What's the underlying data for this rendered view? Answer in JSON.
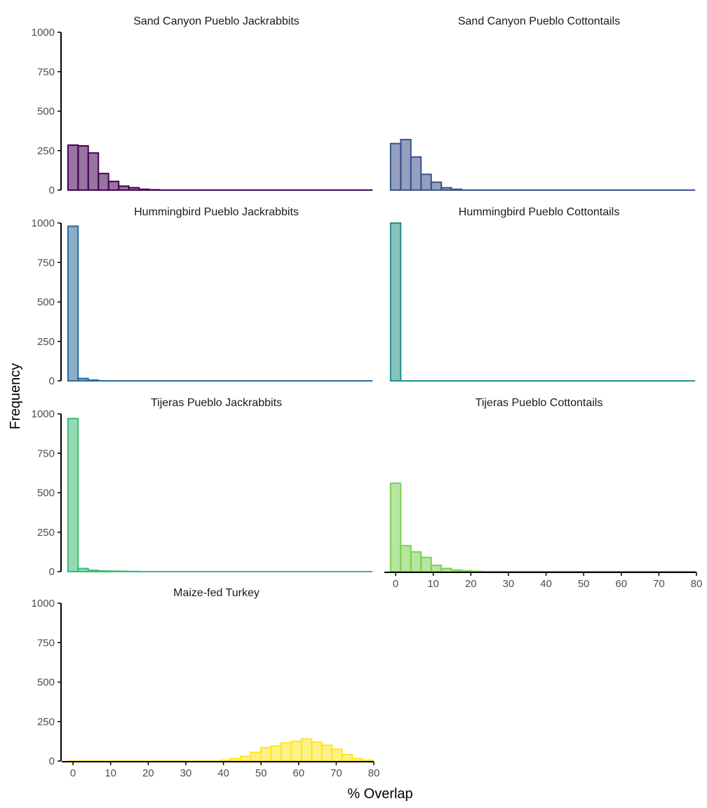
{
  "chart_data": {
    "type": "bar",
    "subtype": "faceted-histogram",
    "xlabel": "% Overlap",
    "ylabel": "Frequency",
    "xlim": [
      -3,
      80
    ],
    "ylim": [
      0,
      1000
    ],
    "x_ticks": [
      0,
      10,
      20,
      30,
      40,
      50,
      60,
      70,
      80
    ],
    "x_tick_labels": [
      "0",
      "10",
      "20",
      "30",
      "40",
      "50",
      "60",
      "70",
      "80"
    ],
    "y_ticks": [
      0,
      250,
      500,
      750,
      1000
    ],
    "y_tick_labels": [
      "0",
      "250",
      "500",
      "750",
      "1000"
    ],
    "bin_width": 2.7,
    "bin_start": -1.35,
    "grid": false,
    "legend": "none",
    "panels": [
      {
        "title": "Sand Canyon Pueblo Jackrabbits",
        "fill": "#440154",
        "stroke": "#440154",
        "values": [
          285,
          280,
          235,
          105,
          55,
          25,
          15,
          5,
          2
        ]
      },
      {
        "title": "Sand Canyon Pueblo Cottontails",
        "fill": "#3b528b",
        "stroke": "#3b528b",
        "values": [
          295,
          320,
          210,
          100,
          50,
          15,
          5
        ]
      },
      {
        "title": "Hummingbird Pueblo Jackrabbits",
        "fill": "#2c6b9a",
        "stroke": "#2c6b9a",
        "values": [
          980,
          15,
          5
        ]
      },
      {
        "title": "Hummingbird Pueblo Cottontails",
        "fill": "#21918c",
        "stroke": "#21918c",
        "values": [
          1000
        ]
      },
      {
        "title": "Tijeras Pueblo Jackrabbits",
        "fill": "#3cbb75",
        "stroke": "#3cbb75",
        "values": [
          970,
          20,
          8,
          4,
          3,
          2,
          1
        ]
      },
      {
        "title": "Tijeras Pueblo Cottontails",
        "fill": "#7ad151",
        "stroke": "#7ad151",
        "values": [
          560,
          165,
          125,
          90,
          40,
          20,
          10,
          5,
          2
        ]
      },
      {
        "title": "Maize-fed Turkey",
        "fill": "#fde725",
        "stroke": "#fde725",
        "values": [
          0,
          0,
          0,
          0,
          0,
          0,
          0,
          0,
          0,
          0,
          0,
          0,
          0,
          0,
          0,
          5,
          15,
          30,
          55,
          85,
          95,
          115,
          125,
          140,
          120,
          100,
          75,
          40,
          15,
          5
        ]
      }
    ]
  }
}
